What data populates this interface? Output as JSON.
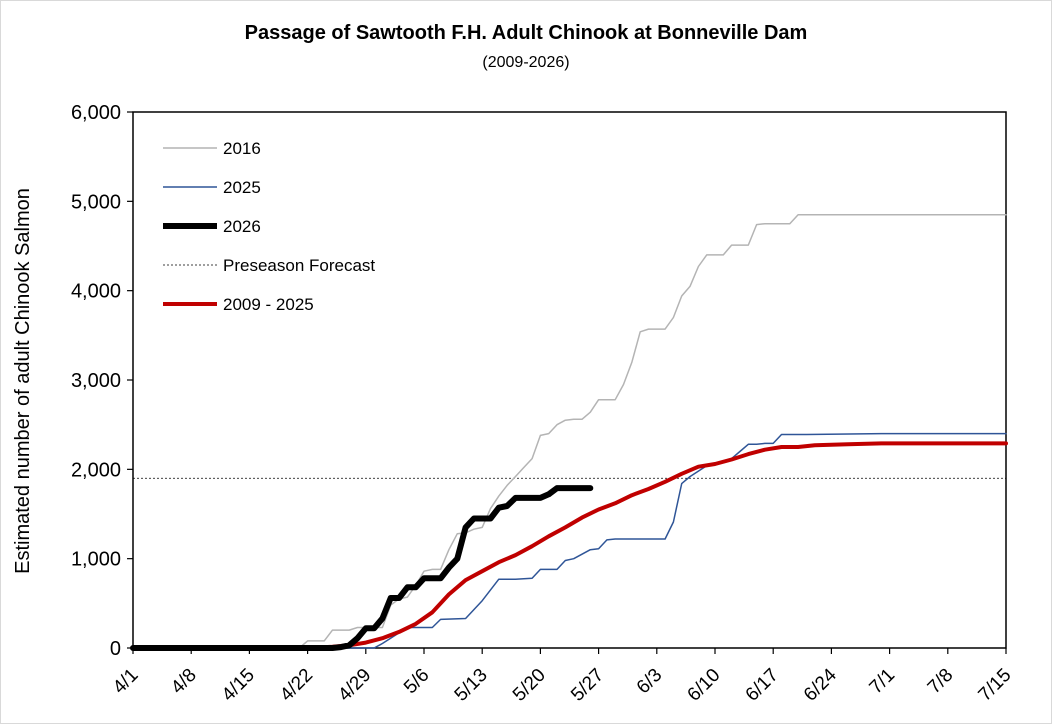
{
  "chart_data": {
    "type": "line",
    "title": "Passage of Sawtooth F.H. Adult Chinook at Bonneville  Dam",
    "subtitle": "(2009-2026)",
    "xlabel": "",
    "ylabel": "Estimated number of adult Chinook Salmon",
    "ylim": [
      0,
      6000
    ],
    "yticks": [
      0,
      1000,
      2000,
      3000,
      4000,
      5000,
      6000
    ],
    "ytick_labels": [
      "0",
      "1,000",
      "2,000",
      "3,000",
      "4,000",
      "5,000",
      "6,000"
    ],
    "xlim_days": [
      0,
      105
    ],
    "xtick_days": [
      0,
      7,
      14,
      21,
      28,
      35,
      42,
      49,
      56,
      63,
      70,
      77,
      84,
      91,
      98,
      105
    ],
    "xtick_labels": [
      "4/1",
      "4/8",
      "4/15",
      "4/22",
      "4/29",
      "5/6",
      "5/13",
      "5/20",
      "5/27",
      "6/3",
      "6/10",
      "6/17",
      "6/24",
      "7/1",
      "7/8",
      "7/15"
    ],
    "grid": false,
    "legend_position": "top-left",
    "preseason_forecast": 1900,
    "series": [
      {
        "name": "2016",
        "color": "#b4b4b4",
        "width": 1.5,
        "style": "solid",
        "x": [
          0,
          20,
          21,
          23,
          24,
          25,
          26,
          27,
          30,
          31,
          32,
          33,
          34,
          35,
          36,
          37,
          38,
          39,
          40,
          41,
          42,
          43,
          44,
          45,
          46,
          47,
          48,
          49,
          50,
          51,
          52,
          53,
          54,
          55,
          56,
          57,
          58,
          59,
          60,
          61,
          62,
          63,
          64,
          65,
          66,
          67,
          68,
          69,
          70,
          71,
          72,
          73,
          74,
          75,
          76,
          77,
          78,
          79,
          80,
          81,
          82,
          90,
          105
        ],
        "y": [
          0,
          0,
          80,
          80,
          200,
          200,
          200,
          230,
          230,
          480,
          550,
          570,
          700,
          860,
          880,
          880,
          1100,
          1280,
          1290,
          1330,
          1350,
          1560,
          1700,
          1820,
          1920,
          2020,
          2120,
          2380,
          2400,
          2500,
          2550,
          2560,
          2560,
          2640,
          2780,
          2780,
          2780,
          2950,
          3200,
          3540,
          3570,
          3570,
          3570,
          3700,
          3940,
          4050,
          4270,
          4400,
          4400,
          4400,
          4510,
          4510,
          4510,
          4740,
          4750,
          4750,
          4750,
          4750,
          4850,
          4850,
          4850,
          4850,
          4850
        ]
      },
      {
        "name": "2025",
        "color": "#2f5597",
        "width": 1.5,
        "style": "solid",
        "x": [
          0,
          29,
          30,
          33,
          34,
          36,
          37,
          40,
          41,
          42,
          43,
          44,
          45,
          46,
          48,
          49,
          50,
          51,
          52,
          53,
          55,
          56,
          57,
          58,
          62,
          63,
          64,
          65,
          66,
          67,
          68,
          69,
          70,
          72,
          73,
          74,
          75,
          76,
          77,
          78,
          79,
          80,
          81,
          90,
          105
        ],
        "y": [
          0,
          0,
          50,
          230,
          230,
          230,
          320,
          330,
          430,
          530,
          650,
          770,
          770,
          770,
          780,
          880,
          880,
          880,
          980,
          1000,
          1100,
          1110,
          1210,
          1220,
          1220,
          1220,
          1220,
          1410,
          1840,
          1920,
          1980,
          2040,
          2060,
          2120,
          2200,
          2280,
          2280,
          2290,
          2290,
          2390,
          2390,
          2390,
          2390,
          2400,
          2400
        ]
      },
      {
        "name": "2026",
        "color": "#000000",
        "width": 6,
        "style": "solid",
        "x": [
          0,
          24,
          25,
          26,
          27,
          28,
          29,
          30,
          31,
          32,
          33,
          34,
          35,
          36,
          37,
          38,
          39,
          40,
          41,
          42,
          43,
          44,
          45,
          46,
          47,
          48,
          49,
          50,
          51,
          52,
          53,
          54,
          55
        ],
        "y": [
          0,
          0,
          10,
          30,
          110,
          220,
          220,
          330,
          560,
          560,
          680,
          680,
          780,
          780,
          780,
          900,
          1000,
          1350,
          1450,
          1450,
          1450,
          1570,
          1590,
          1680,
          1680,
          1680,
          1680,
          1720,
          1790,
          1790,
          1790,
          1790,
          1790
        ]
      },
      {
        "name": "2009 - 2025",
        "color": "#c00000",
        "width": 4,
        "style": "solid",
        "x": [
          0,
          20,
          22,
          24,
          26,
          28,
          30,
          32,
          34,
          36,
          38,
          40,
          42,
          44,
          46,
          48,
          50,
          52,
          54,
          56,
          58,
          60,
          62,
          64,
          66,
          68,
          70,
          72,
          74,
          76,
          78,
          80,
          82,
          86,
          90,
          105
        ],
        "y": [
          0,
          0,
          5,
          15,
          30,
          60,
          110,
          180,
          270,
          400,
          600,
          760,
          860,
          960,
          1040,
          1140,
          1250,
          1350,
          1460,
          1550,
          1620,
          1710,
          1780,
          1860,
          1950,
          2030,
          2060,
          2110,
          2170,
          2220,
          2250,
          2250,
          2270,
          2280,
          2290,
          2290
        ]
      },
      {
        "name": "Preseason Forecast",
        "color": "#000000",
        "width": 0.8,
        "style": "dotted"
      }
    ],
    "legend_order": [
      "2016",
      "2025",
      "2026",
      "Preseason Forecast",
      "2009 - 2025"
    ]
  }
}
